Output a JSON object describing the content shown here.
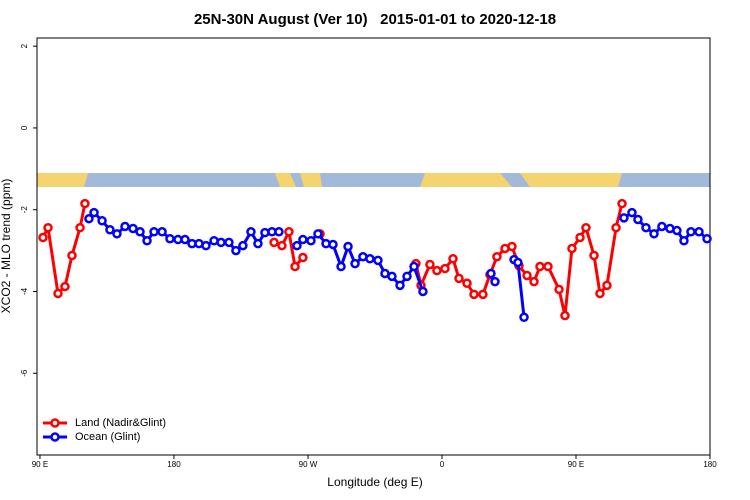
{
  "chart_data": {
    "type": "line",
    "title": "25N-30N August (Ver 10)   2015-01-01 to 2020-12-18",
    "x_label": "Longitude (deg E)",
    "y_label": "XCO2 - MLO trend (ppm)",
    "xlim": [
      88,
      540
    ],
    "xticks": [
      {
        "value": 90,
        "label": "90 E"
      },
      180,
      {
        "value": 270,
        "label": "90 W"
      },
      {
        "value": 360,
        "label": "0"
      },
      {
        "value": 450,
        "label": "90 E"
      },
      {
        "value": 540,
        "label": "180"
      }
    ],
    "ylim": [
      -8,
      2.2
    ],
    "yticks": [
      2,
      0,
      -2,
      -4,
      -6
    ],
    "legend": "bottom-left",
    "series": [
      {
        "name": "Land (Nadir&Glint)",
        "color": "#ff0000",
        "x": [
          92.0,
          95.4,
          102.1,
          106.8,
          111.5,
          116.9,
          120.2,
          null,
          247.2,
          252.5,
          257.2,
          261.3,
          266.6,
          null,
          278.1,
          null,
          342.5,
          345.9,
          351.9,
          356.6,
          362.0,
          367.4,
          371.4,
          376.8,
          381.5,
          387.5,
          392.2,
          396.9,
          402.3,
          407.0,
          411.7,
          417.1,
          421.8,
          425.8,
          431.2,
          438.6,
          442.6,
          447.3,
          452.7,
          456.7,
          462.1,
          466.1,
          470.8,
          476.9,
          480.9
        ],
        "values": [
          -2.68,
          -2.44,
          -4.05,
          -3.88,
          -3.12,
          -2.44,
          -1.85,
          null,
          -2.8,
          -2.88,
          -2.54,
          -3.39,
          -3.17,
          null,
          -2.59,
          null,
          -3.32,
          -3.85,
          -3.34,
          -3.49,
          -3.44,
          -3.2,
          -3.68,
          -3.8,
          -4.07,
          -4.07,
          -3.59,
          -3.15,
          -2.95,
          -2.9,
          -3.37,
          -3.61,
          -3.76,
          -3.39,
          -3.39,
          -3.95,
          -4.59,
          -2.95,
          -2.68,
          -2.44,
          -3.12,
          -4.05,
          -3.85,
          -2.44,
          -1.85
        ]
      },
      {
        "name": "Ocean (Glint)",
        "color": "#0000ff",
        "x": [
          122.9,
          126.3,
          131.7,
          137.0,
          141.7,
          147.1,
          152.5,
          157.2,
          161.9,
          166.6,
          172.0,
          177.3,
          182.7,
          187.4,
          192.1,
          196.8,
          201.5,
          206.9,
          211.6,
          216.9,
          221.6,
          226.3,
          231.7,
          236.4,
          241.1,
          245.8,
          250.5,
          null,
          262.6,
          266.6,
          272.0,
          276.7,
          282.1,
          286.8,
          292.2,
          296.9,
          301.6,
          306.9,
          311.6,
          317.0,
          321.7,
          326.4,
          331.8,
          336.5,
          341.2,
          347.2,
          null,
          392.9,
          395.6,
          null,
          408.4,
          411.0,
          415.1,
          null,
          482.2,
          487.6,
          491.6,
          497.0,
          502.4,
          507.7,
          513.1,
          517.8,
          522.5,
          527.2,
          532.6,
          538.0
        ],
        "values": [
          -2.22,
          -2.07,
          -2.27,
          -2.49,
          -2.59,
          -2.41,
          -2.46,
          -2.54,
          -2.76,
          -2.54,
          -2.54,
          -2.71,
          -2.73,
          -2.73,
          -2.83,
          -2.83,
          -2.88,
          -2.76,
          -2.8,
          -2.8,
          -3.0,
          -2.88,
          -2.54,
          -2.83,
          -2.56,
          -2.54,
          -2.54,
          null,
          -2.88,
          -2.73,
          -2.76,
          -2.59,
          -2.83,
          -2.85,
          -3.39,
          -2.9,
          -3.32,
          -3.15,
          -3.2,
          -3.24,
          -3.56,
          -3.63,
          -3.85,
          -3.63,
          -3.39,
          -4.0,
          null,
          -3.56,
          -3.76,
          null,
          -3.22,
          -3.29,
          -4.63,
          null,
          -2.2,
          -2.07,
          -2.24,
          -2.44,
          -2.59,
          -2.41,
          -2.46,
          -2.51,
          -2.76,
          -2.54,
          -2.54,
          -2.71
        ]
      }
    ]
  }
}
